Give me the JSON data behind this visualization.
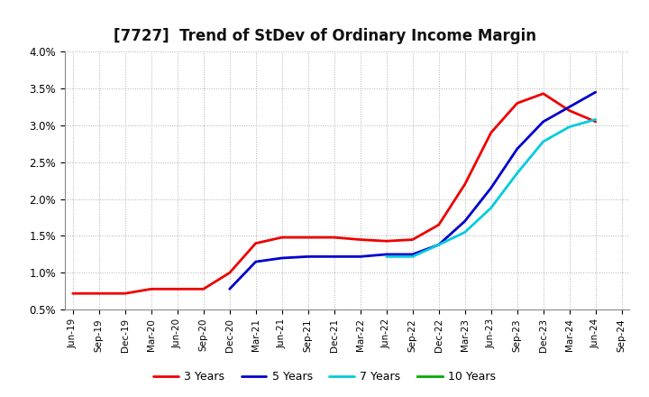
{
  "title": "[7727]  Trend of StDev of Ordinary Income Margin",
  "background_color": "#ffffff",
  "plot_bg_color": "#ffffff",
  "grid_color": "#b0b0b0",
  "xlabels": [
    "Jun-19",
    "Sep-19",
    "Dec-19",
    "Mar-20",
    "Jun-20",
    "Sep-20",
    "Dec-20",
    "Mar-21",
    "Jun-21",
    "Sep-21",
    "Dec-21",
    "Mar-22",
    "Jun-22",
    "Sep-22",
    "Dec-22",
    "Mar-23",
    "Jun-23",
    "Sep-23",
    "Dec-23",
    "Mar-24",
    "Jun-24",
    "Sep-24"
  ],
  "ylim": [
    0.005,
    0.04
  ],
  "yticks": [
    0.005,
    0.01,
    0.015,
    0.02,
    0.025,
    0.03,
    0.035,
    0.04
  ],
  "series": {
    "3 Years": {
      "color": "#ee0000",
      "values": [
        0.0072,
        0.0072,
        0.0072,
        0.0078,
        0.0078,
        0.0078,
        0.01,
        0.014,
        0.0148,
        0.0148,
        0.0148,
        0.0145,
        0.0143,
        0.0145,
        0.0165,
        0.022,
        0.029,
        0.033,
        0.0343,
        0.032,
        0.0305,
        null
      ]
    },
    "5 Years": {
      "color": "#0000cc",
      "values": [
        null,
        null,
        null,
        null,
        null,
        null,
        0.0078,
        0.0115,
        0.012,
        0.0122,
        0.0122,
        0.0122,
        0.0125,
        0.0125,
        0.0138,
        0.017,
        0.0215,
        0.0268,
        0.0305,
        0.0325,
        0.0345,
        null
      ]
    },
    "7 Years": {
      "color": "#00ccdd",
      "values": [
        null,
        null,
        null,
        null,
        null,
        null,
        null,
        null,
        null,
        null,
        null,
        null,
        0.0122,
        0.0122,
        0.0138,
        0.0155,
        0.0188,
        0.0235,
        0.0278,
        0.0298,
        0.0308,
        null
      ]
    },
    "10 Years": {
      "color": "#00aa00",
      "values": [
        null,
        null,
        null,
        null,
        null,
        null,
        null,
        null,
        null,
        null,
        null,
        null,
        null,
        null,
        null,
        null,
        null,
        null,
        null,
        null,
        null,
        null
      ]
    }
  },
  "legend_order": [
    "3 Years",
    "5 Years",
    "7 Years",
    "10 Years"
  ]
}
